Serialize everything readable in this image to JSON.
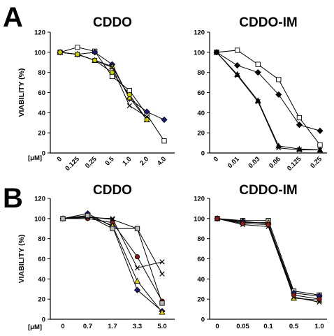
{
  "panel_labels": [
    "A",
    "B"
  ],
  "y_axis_label": "VIABILITY (%)",
  "unit_label": "[μM]",
  "chart_data": [
    {
      "type": "line",
      "panel": "A",
      "title": "CDDO",
      "categories": [
        "0",
        "0.125",
        "0.25",
        "0.5",
        "1.0",
        "2.0",
        "4.0"
      ],
      "ylim": [
        0,
        120
      ],
      "yticks": [
        0,
        20,
        40,
        60,
        80,
        100,
        120
      ],
      "grid": false,
      "series": [
        {
          "marker": "square",
          "color": "#ffffff",
          "values": [
            100,
            105,
            101,
            76,
            62,
            38,
            12
          ]
        },
        {
          "marker": "diamond",
          "color": "#1a1a80",
          "values": [
            100,
            98,
            100,
            88,
            54,
            41,
            33
          ]
        },
        {
          "marker": "triangle",
          "color": "#e0d000",
          "values": [
            100,
            98,
            92,
            86,
            55,
            33,
            null
          ]
        },
        {
          "marker": "x",
          "color": "#000000",
          "values": [
            100,
            98,
            92,
            85,
            47,
            36,
            null
          ]
        },
        {
          "marker": "circle",
          "color": "#cccc00",
          "values": [
            100,
            98,
            92,
            80,
            58,
            33,
            null
          ]
        }
      ]
    },
    {
      "type": "line",
      "panel": "A",
      "title": "CDDO-IM",
      "categories": [
        "0",
        "0.01",
        "0.03",
        "0.06",
        "0.125",
        "0.25"
      ],
      "ylim": [
        0,
        120
      ],
      "yticks": [
        0,
        20,
        40,
        60,
        80,
        100,
        120
      ],
      "grid": false,
      "series": [
        {
          "marker": "square",
          "color": "#ffffff",
          "values": [
            100,
            102,
            88,
            73,
            35,
            8
          ]
        },
        {
          "marker": "diamond",
          "color": "#000000",
          "values": [
            100,
            87,
            80,
            58,
            28,
            22
          ]
        },
        {
          "marker": "triangle",
          "color": "#000000",
          "values": [
            100,
            78,
            52,
            7,
            4,
            3
          ]
        },
        {
          "marker": "x",
          "color": "#000000",
          "values": [
            100,
            77,
            51,
            5,
            3,
            3
          ]
        }
      ]
    },
    {
      "type": "line",
      "panel": "B",
      "title": "CDDO",
      "categories": [
        "0",
        "0.7",
        "1.7",
        "3.3",
        "5.0"
      ],
      "ylim": [
        0,
        120
      ],
      "yticks": [
        0,
        20,
        40,
        60,
        80,
        100,
        120
      ],
      "grid": false,
      "series": [
        {
          "marker": "circle",
          "color": "#8b1a1a",
          "values": [
            100,
            100,
            96,
            62,
            18
          ]
        },
        {
          "marker": "diamond",
          "color": "#1a1a80",
          "values": [
            100,
            105,
            92,
            29,
            8
          ]
        },
        {
          "marker": "triangle",
          "color": "#e0d000",
          "values": [
            100,
            103,
            93,
            38,
            7
          ]
        },
        {
          "marker": "x",
          "color": "#000000",
          "values": [
            100,
            101,
            100,
            51,
            57
          ]
        },
        {
          "marker": "x",
          "color": "#000000",
          "values": [
            100,
            102,
            99,
            90,
            45
          ]
        },
        {
          "marker": "square",
          "color": "#bbbbbb",
          "values": [
            100,
            103,
            90,
            90,
            16
          ]
        }
      ]
    },
    {
      "type": "line",
      "panel": "B",
      "title": "CDDO-IM",
      "categories": [
        "0",
        "0.05",
        "0.1",
        "0.5",
        "1.0"
      ],
      "ylim": [
        0,
        120
      ],
      "yticks": [
        0,
        20,
        40,
        60,
        80,
        100,
        120
      ],
      "grid": false,
      "series": [
        {
          "marker": "square",
          "color": "#bbbbbb",
          "values": [
            100,
            98,
            98,
            28,
            24
          ]
        },
        {
          "marker": "diamond",
          "color": "#1a1a80",
          "values": [
            100,
            97,
            95,
            26,
            23
          ]
        },
        {
          "marker": "triangle",
          "color": "#e0d000",
          "values": [
            100,
            96,
            96,
            21,
            19
          ]
        },
        {
          "marker": "x",
          "color": "#000000",
          "values": [
            100,
            94,
            92,
            22,
            17
          ]
        },
        {
          "marker": "circle",
          "color": "#8b1a1a",
          "values": [
            100,
            95,
            94,
            24,
            20
          ]
        }
      ]
    }
  ]
}
